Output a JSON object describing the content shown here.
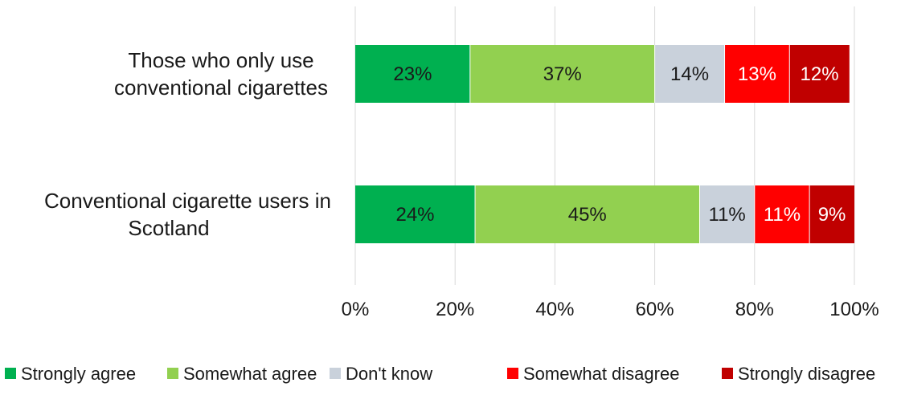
{
  "chart_data": {
    "type": "bar",
    "orientation": "horizontal",
    "stacked": true,
    "percent": true,
    "categories": [
      [
        "Those who only use",
        "conventional cigarettes"
      ],
      [
        "Conventional cigarette users in",
        "Scotland"
      ]
    ],
    "series": [
      {
        "name": "Strongly agree",
        "values": [
          23,
          24
        ],
        "labels": [
          "23%",
          "24%"
        ],
        "color": "#00b050",
        "label_color": "#1a1a1a"
      },
      {
        "name": "Somewhat agree",
        "values": [
          37,
          45
        ],
        "labels": [
          "37%",
          "45%"
        ],
        "color": "#92d050",
        "label_color": "#1a1a1a"
      },
      {
        "name": "Don't know",
        "values": [
          14,
          11
        ],
        "labels": [
          "14%",
          "11%"
        ],
        "color": "#c9d1db",
        "label_color": "#1a1a1a"
      },
      {
        "name": "Somewhat disagree",
        "values": [
          13,
          11
        ],
        "labels": [
          "13%",
          "11%"
        ],
        "color": "#ff0000",
        "label_color": "#ffffff"
      },
      {
        "name": "Strongly disagree",
        "values": [
          12,
          9
        ],
        "labels": [
          "12%",
          "9%"
        ],
        "color": "#c00000",
        "label_color": "#ffffff"
      }
    ],
    "xlim": [
      0,
      100
    ],
    "xticks": [
      "0%",
      "20%",
      "40%",
      "60%",
      "80%",
      "100%"
    ],
    "grid": true,
    "legend_position": "bottom"
  }
}
